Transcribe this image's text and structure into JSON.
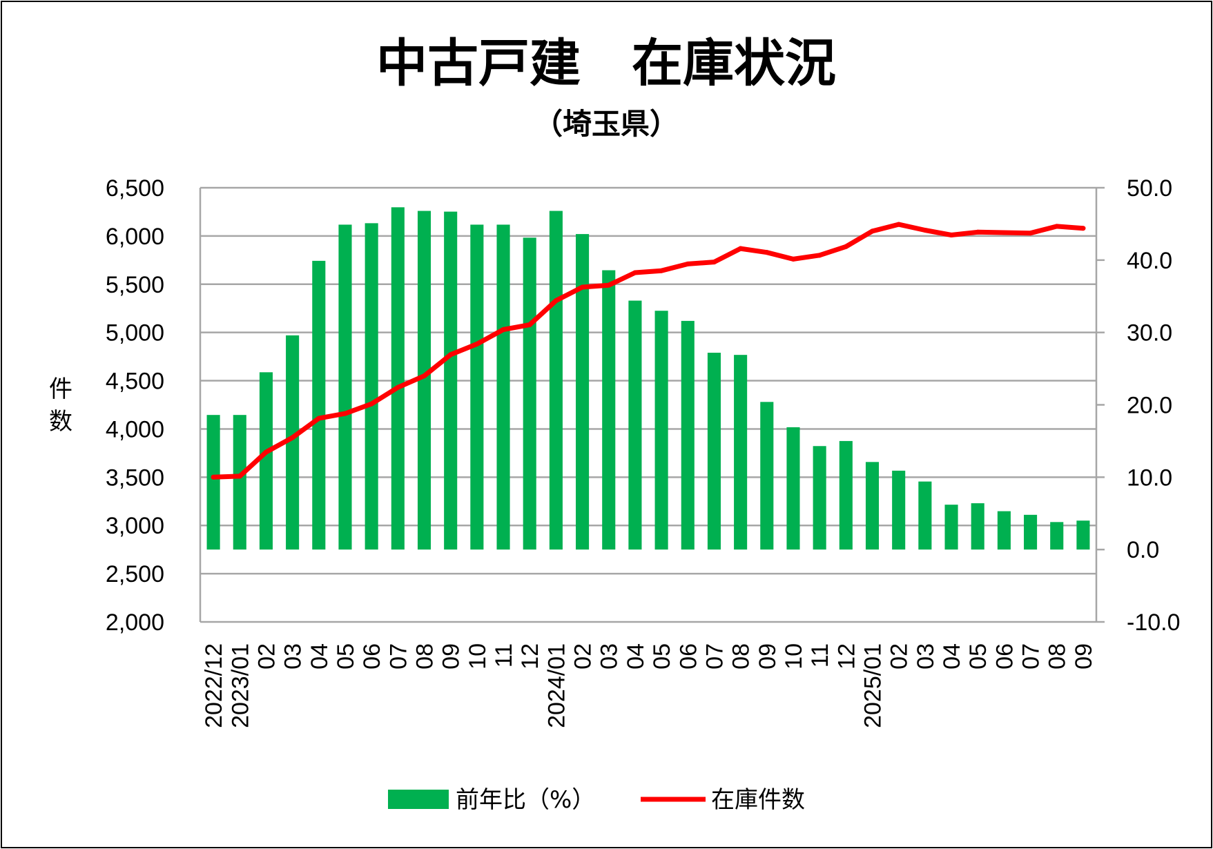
{
  "chart_data": {
    "type": "bar+line",
    "title": "中古戸建　在庫状況",
    "subtitle": "（埼玉県）",
    "ylabel_left": "件数",
    "ylabel_left_chars": [
      "件",
      "数"
    ],
    "ylim_left": [
      2000,
      6500
    ],
    "yticks_left": [
      "2,000",
      "2,500",
      "3,000",
      "3,500",
      "4,000",
      "4,500",
      "5,000",
      "5,500",
      "6,000",
      "6,500"
    ],
    "ytick_values_left": [
      2000,
      2500,
      3000,
      3500,
      4000,
      4500,
      5000,
      5500,
      6000,
      6500
    ],
    "ylim_right": [
      -10,
      50
    ],
    "yticks_right": [
      "-10.0",
      "0.0",
      "10.0",
      "20.0",
      "30.0",
      "40.0",
      "50.0"
    ],
    "ytick_values_right": [
      -10,
      0,
      10,
      20,
      30,
      40,
      50
    ],
    "categories": [
      "2022/12",
      "2023/01",
      "02",
      "03",
      "04",
      "05",
      "06",
      "07",
      "08",
      "09",
      "10",
      "11",
      "12",
      "2024/01",
      "02",
      "03",
      "04",
      "05",
      "06",
      "07",
      "08",
      "09",
      "10",
      "11",
      "12",
      "2025/01",
      "02",
      "03",
      "04",
      "05",
      "06",
      "07",
      "08",
      "09"
    ],
    "series": [
      {
        "name": "前年比（%）",
        "type": "bar",
        "axis": "right",
        "color": "#00b050",
        "values": [
          18.6,
          18.6,
          24.5,
          29.6,
          39.9,
          44.9,
          45.1,
          47.3,
          46.8,
          46.7,
          44.9,
          44.9,
          43.1,
          46.8,
          43.6,
          38.6,
          34.4,
          33.0,
          31.6,
          27.2,
          26.9,
          20.4,
          16.9,
          14.3,
          15.0,
          12.1,
          10.9,
          9.4,
          6.2,
          6.4,
          5.3,
          4.8,
          3.8,
          4.0
        ]
      },
      {
        "name": "在庫件数",
        "type": "line",
        "axis": "left",
        "color": "#ff0000",
        "values": [
          3500,
          3510,
          3760,
          3910,
          4110,
          4160,
          4260,
          4430,
          4550,
          4770,
          4880,
          5030,
          5080,
          5330,
          5470,
          5490,
          5620,
          5640,
          5710,
          5730,
          5870,
          5830,
          5760,
          5800,
          5890,
          6050,
          6120,
          6060,
          6010,
          6040,
          6035,
          6030,
          6100,
          6080
        ]
      }
    ],
    "legend_position": "bottom",
    "grid": true
  }
}
